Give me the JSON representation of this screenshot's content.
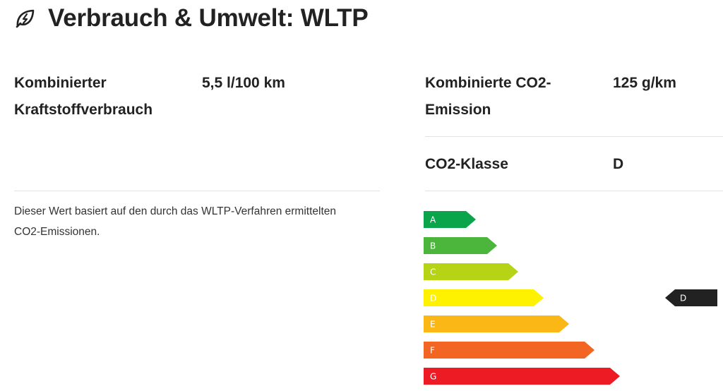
{
  "header": {
    "title": "Verbrauch & Umwelt: WLTP",
    "icon": "leaf-bolt-icon"
  },
  "consumption": {
    "label_line1": "Kombinierter",
    "label_line2": "Kraftstoffverbrauch",
    "value": "5,5 l/100 km"
  },
  "co2_emission": {
    "label_line1": "Kombinierte CO2-",
    "label_line2": "Emission",
    "value": "125 g/km"
  },
  "co2_class": {
    "label": "CO2-Klasse",
    "value": "D"
  },
  "note": {
    "line1": "Dieser Wert basiert auf den durch das WLTP-Verfahren ermittelten",
    "line2": "CO2-Emissionen."
  },
  "energy_label": {
    "classes": [
      {
        "letter": "A",
        "color": "#0aa54a"
      },
      {
        "letter": "B",
        "color": "#4cb63c"
      },
      {
        "letter": "C",
        "color": "#b6d316"
      },
      {
        "letter": "D",
        "color": "#fff200"
      },
      {
        "letter": "E",
        "color": "#fbb716"
      },
      {
        "letter": "F",
        "color": "#f26522"
      },
      {
        "letter": "G",
        "color": "#ed1c24"
      }
    ],
    "indicator": {
      "letter": "D",
      "color": "#222222"
    }
  }
}
